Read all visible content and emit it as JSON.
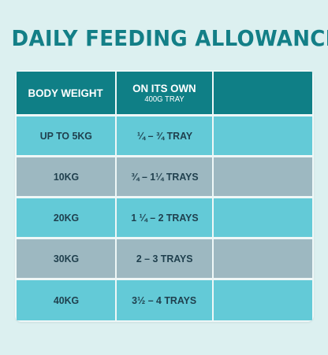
{
  "title": "DAILY FEEDING ALLOWANCE",
  "header": {
    "col1": "BODY WEIGHT",
    "col2": "ON ITS OWN",
    "col2_sub": "400G TRAY",
    "col3": ""
  },
  "rows": [
    {
      "weight": "UP TO 5KG",
      "amount": "¼ – ¾ TRAY",
      "extra": ""
    },
    {
      "weight": "10KG",
      "amount": "¾ – 1¼ TRAYS",
      "extra": ""
    },
    {
      "weight": "20KG",
      "amount": "1 ¼ – 2 TRAYS",
      "extra": ""
    },
    {
      "weight": "30KG",
      "amount": "2 – 3 TRAYS",
      "extra": ""
    },
    {
      "weight": "40KG",
      "amount": "3½ – 4 TRAYS",
      "extra": ""
    }
  ],
  "colors": {
    "title": "#137f87",
    "header_bg": "#0f7f86",
    "row_light": "#63cad7",
    "row_dark": "#9db8c1",
    "page_bg": "#dcf0f0"
  }
}
